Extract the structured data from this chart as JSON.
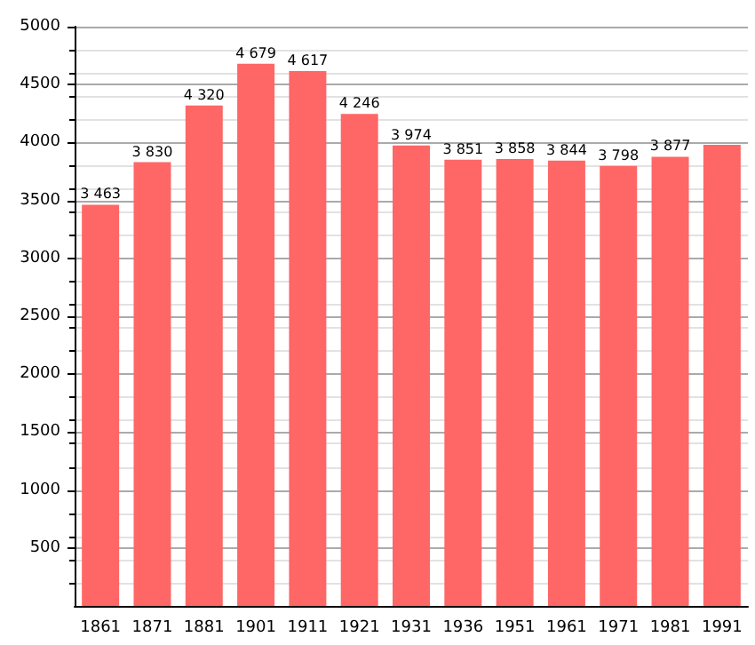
{
  "chart_data": {
    "type": "bar",
    "categories": [
      "1861",
      "1871",
      "1881",
      "1901",
      "1911",
      "1921",
      "1931",
      "1936",
      "1951",
      "1961",
      "1971",
      "1981",
      "1991"
    ],
    "values": [
      3463,
      3830,
      4320,
      4679,
      4617,
      4246,
      3974,
      3851,
      3858,
      3844,
      3798,
      3877,
      3980
    ],
    "value_labels": [
      "3 463",
      "3 830",
      "4 320",
      "4 679",
      "4 617",
      "4 246",
      "3 974",
      "3 851",
      "3 858",
      "3 844",
      "3 798",
      "3 877",
      null
    ],
    "color": "#ff6666",
    "ylim": [
      0,
      5000
    ],
    "yticks": [
      500,
      1000,
      1500,
      2000,
      2500,
      3000,
      3500,
      4000,
      4500,
      5000
    ],
    "grid": "y"
  }
}
